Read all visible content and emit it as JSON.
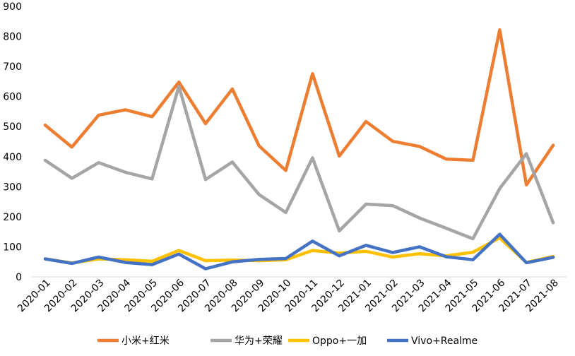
{
  "chart_data": {
    "type": "line",
    "title": "",
    "xlabel": "",
    "ylabel": "",
    "ylim": [
      0,
      900
    ],
    "yticks": [
      0,
      100,
      200,
      300,
      400,
      500,
      600,
      700,
      800,
      900
    ],
    "grid": false,
    "legend_position": "bottom",
    "categories": [
      "2020-01",
      "2020-02",
      "2020-03",
      "2020-04",
      "2020-05",
      "2020-06",
      "2020-07",
      "2020-08",
      "2020-09",
      "2020-10",
      "2020-11",
      "2020-12",
      "2021-01",
      "2021-02",
      "2021-03",
      "2021-04",
      "2021-05",
      "2021-06",
      "2021-07",
      "2021-08"
    ],
    "series": [
      {
        "name": "小米+红米",
        "color": "#ED7D31",
        "values": [
          505,
          432,
          538,
          556,
          533,
          648,
          510,
          625,
          436,
          354,
          676,
          402,
          517,
          451,
          434,
          392,
          388,
          822,
          306,
          438
        ]
      },
      {
        "name": "华为+荣耀",
        "color": "#A5A5A5",
        "values": [
          388,
          328,
          380,
          348,
          326,
          634,
          324,
          382,
          274,
          214,
          396,
          153,
          242,
          237,
          196,
          162,
          127,
          294,
          410,
          180
        ]
      },
      {
        "name": "Oppo+一加",
        "color": "#FFC000",
        "values": [
          60,
          46,
          60,
          57,
          52,
          88,
          54,
          56,
          54,
          57,
          88,
          79,
          85,
          66,
          77,
          70,
          82,
          130,
          48,
          68
        ]
      },
      {
        "name": "Vivo+Realme",
        "color": "#4472C4",
        "values": [
          60,
          45,
          66,
          48,
          41,
          76,
          27,
          50,
          58,
          61,
          119,
          70,
          105,
          81,
          100,
          67,
          57,
          142,
          47,
          65
        ]
      }
    ]
  }
}
